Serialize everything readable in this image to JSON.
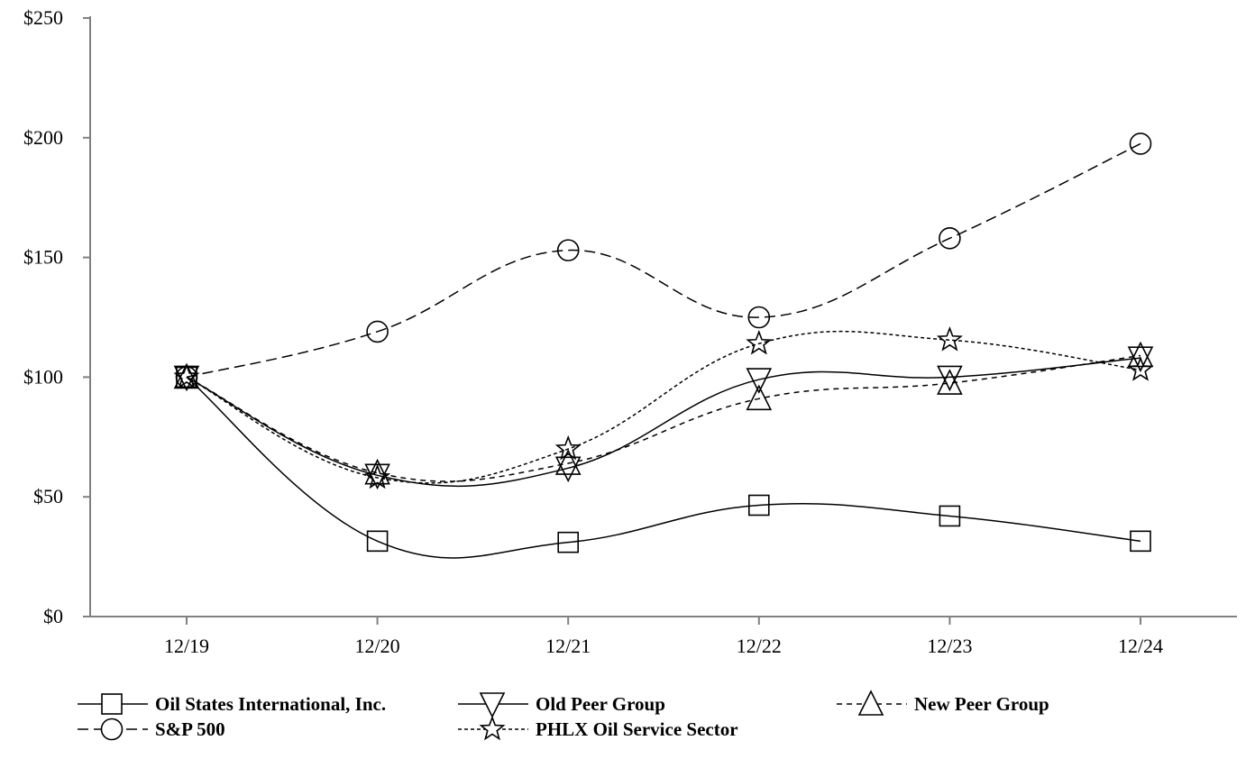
{
  "chart_data": {
    "type": "line",
    "title": "",
    "xlabel": "",
    "ylabel": "",
    "categories": [
      "12/19",
      "12/20",
      "12/21",
      "12/22",
      "12/23",
      "12/24"
    ],
    "yticks": [
      "$0",
      "$50",
      "$100",
      "$150",
      "$200",
      "$250"
    ],
    "ylim": [
      0,
      250
    ],
    "grid": false,
    "legend_position": "bottom",
    "series": [
      {
        "name": "Oil States International, Inc.",
        "marker": "square",
        "dash": "solid",
        "values": [
          100,
          31.5,
          31,
          46.5,
          42,
          31.5
        ]
      },
      {
        "name": "Old Peer Group",
        "marker": "triangle-down",
        "dash": "solid",
        "values": [
          100,
          59,
          62,
          99,
          100,
          108
        ]
      },
      {
        "name": "New Peer Group",
        "marker": "triangle-up",
        "dash": "dashed",
        "values": [
          100,
          60,
          64,
          91,
          97.5,
          109
        ]
      },
      {
        "name": "S&P 500",
        "marker": "circle",
        "dash": "long-dashed",
        "values": [
          100,
          119,
          153,
          125,
          158,
          197.5
        ]
      },
      {
        "name": "PHLX Oil Service Sector",
        "marker": "star",
        "dash": "dotted",
        "values": [
          100,
          58,
          70,
          114,
          115.5,
          103
        ]
      }
    ]
  }
}
